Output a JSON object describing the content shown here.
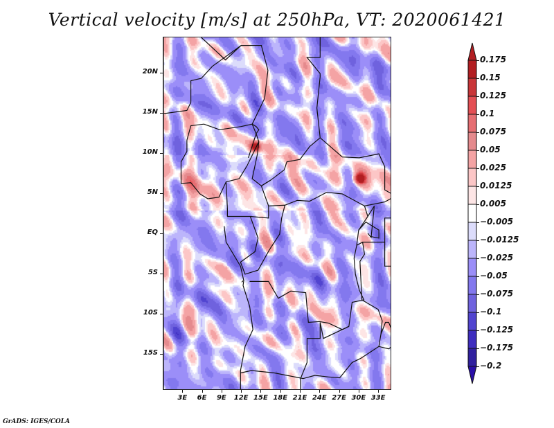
{
  "chart_data": {
    "type": "heatmap",
    "title": "Vertical velocity [m/s] at 250hPa, VT: 2020061421",
    "variable": "Vertical velocity",
    "units": "m/s",
    "level": "250hPa",
    "valid_time": "2020061421",
    "xlabel": "",
    "ylabel": "",
    "x_range_deg_east": [
      0,
      35
    ],
    "y_range_deg_north": [
      -19.5,
      24.5
    ],
    "x_ticks": [
      {
        "value": 3,
        "label": "3E"
      },
      {
        "value": 6,
        "label": "6E"
      },
      {
        "value": 9,
        "label": "9E"
      },
      {
        "value": 12,
        "label": "12E"
      },
      {
        "value": 15,
        "label": "15E"
      },
      {
        "value": 18,
        "label": "18E"
      },
      {
        "value": 21,
        "label": "21E"
      },
      {
        "value": 24,
        "label": "24E"
      },
      {
        "value": 27,
        "label": "27E"
      },
      {
        "value": 30,
        "label": "30E"
      },
      {
        "value": 33,
        "label": "33E"
      }
    ],
    "y_ticks": [
      {
        "value": 20,
        "label": "20N"
      },
      {
        "value": 15,
        "label": "15N"
      },
      {
        "value": 10,
        "label": "10N"
      },
      {
        "value": 5,
        "label": "5N"
      },
      {
        "value": 0,
        "label": "EQ"
      },
      {
        "value": -5,
        "label": "5S"
      },
      {
        "value": -10,
        "label": "10S"
      },
      {
        "value": -15,
        "label": "15S"
      }
    ],
    "colorbar": {
      "orientation": "vertical",
      "placement": "right",
      "extend": "both",
      "levels": [
        {
          "label": "0.175",
          "color": "#b21e22"
        },
        {
          "label": "0.15",
          "color": "#c93538"
        },
        {
          "label": "0.125",
          "color": "#e44f54"
        },
        {
          "label": "0.1",
          "color": "#e66e72"
        },
        {
          "label": "0.075",
          "color": "#e58a8d"
        },
        {
          "label": "0.05",
          "color": "#f4a3a4"
        },
        {
          "label": "0.025",
          "color": "#fcc6c6"
        },
        {
          "label": "0.0125",
          "color": "#fde5e5"
        },
        {
          "label": "0.005",
          "color": "#ffffff"
        },
        {
          "label": "−0.005",
          "color": "#dcdcfb"
        },
        {
          "label": "−0.0125",
          "color": "#bcb5fb"
        },
        {
          "label": "−0.025",
          "color": "#9b8ef8"
        },
        {
          "label": "−0.05",
          "color": "#8378ee"
        },
        {
          "label": "−0.075",
          "color": "#6f62de"
        },
        {
          "label": "−0.1",
          "color": "#5144d0"
        },
        {
          "label": "−0.125",
          "color": "#3e2dbf"
        },
        {
          "label": "−0.175",
          "color": "#30209f"
        },
        {
          "label": "−0.2",
          "color": "#2a0fa8"
        }
      ],
      "box_colors_top_to_bottom": [
        "#b21e22",
        "#c93538",
        "#e44f54",
        "#e66e72",
        "#e58a8d",
        "#f4a3a4",
        "#fcc6c6",
        "#fde5e5",
        "#ffffff",
        "#dcdcfb",
        "#bcb5fb",
        "#9b8ef8",
        "#8378ee",
        "#6f62de",
        "#5144d0",
        "#3e2dbf",
        "#30209f"
      ],
      "top_triangle_color": "#b21e22",
      "bottom_triangle_color": "#2a0fa8"
    },
    "notable_features": [
      {
        "desc": "strong ascent (dark red) near Lake Chad",
        "lon": 14,
        "lat": 11
      },
      {
        "desc": "strong ascent (dark red) in South Sudan region",
        "lon": 30,
        "lat": 7
      },
      {
        "desc": "ascent band over Gulf of Guinea coast",
        "lon": 6,
        "lat": 7
      }
    ],
    "background_tendency": "mostly weak descent (light blue/purple) with scattered ascent streaks"
  },
  "credit": "GrADS: IGES/COLA"
}
